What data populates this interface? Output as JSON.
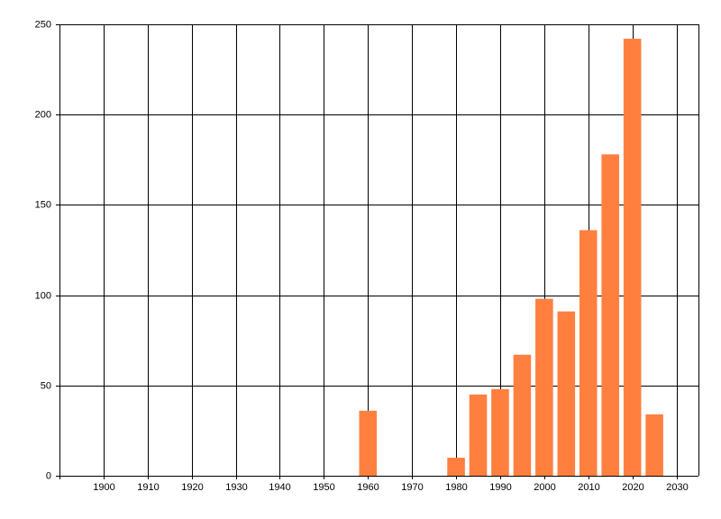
{
  "chart_data": {
    "type": "bar",
    "x": [
      1960,
      1980,
      1985,
      1990,
      1995,
      2000,
      2005,
      2010,
      2015,
      2020,
      2025
    ],
    "values": [
      36,
      10,
      45,
      48,
      67,
      98,
      91,
      136,
      178,
      242,
      34
    ],
    "color": "#ff7f3f",
    "xlim": [
      1890,
      2035
    ],
    "xticks": [
      1900,
      1910,
      1920,
      1930,
      1940,
      1950,
      1960,
      1970,
      1980,
      1990,
      2000,
      2010,
      2020,
      2030
    ],
    "ylim": [
      0,
      250
    ],
    "yticks": [
      0,
      50,
      100,
      150,
      200,
      250
    ],
    "grid": true
  }
}
